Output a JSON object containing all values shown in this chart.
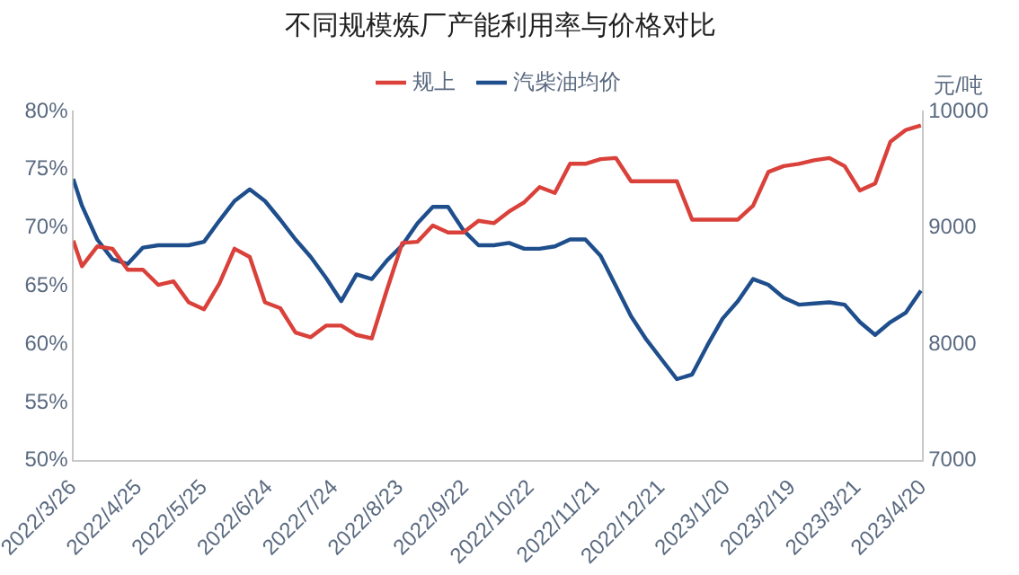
{
  "chart_data": {
    "type": "line",
    "title": "不同规模炼厂产能利用率与价格对比",
    "y2label": "元/吨",
    "x": [
      "2022-03-26",
      "2022-03-30",
      "2022-04-06",
      "2022-04-13",
      "2022-04-20",
      "2022-04-27",
      "2022-05-04",
      "2022-05-11",
      "2022-05-18",
      "2022-05-25",
      "2022-06-01",
      "2022-06-08",
      "2022-06-15",
      "2022-06-22",
      "2022-06-29",
      "2022-07-06",
      "2022-07-13",
      "2022-07-20",
      "2022-07-27",
      "2022-08-03",
      "2022-08-10",
      "2022-08-17",
      "2022-08-24",
      "2022-08-31",
      "2022-09-07",
      "2022-09-14",
      "2022-09-21",
      "2022-09-28",
      "2022-10-05",
      "2022-10-12",
      "2022-10-19",
      "2022-10-26",
      "2022-11-02",
      "2022-11-09",
      "2022-11-16",
      "2022-11-23",
      "2022-11-30",
      "2022-12-07",
      "2022-12-14",
      "2022-12-21",
      "2022-12-28",
      "2023-01-04",
      "2023-01-11",
      "2023-01-18",
      "2023-01-25",
      "2023-02-01",
      "2023-02-08",
      "2023-02-15",
      "2023-02-22",
      "2023-03-01",
      "2023-03-08",
      "2023-03-15",
      "2023-03-22",
      "2023-03-29",
      "2023-04-05",
      "2023-04-12",
      "2023-04-19"
    ],
    "series": [
      {
        "name": "规上",
        "color": "#d9413a",
        "axis": "y",
        "values": [
          68.9,
          66.7,
          68.4,
          68.2,
          66.4,
          66.4,
          65.1,
          65.4,
          63.6,
          63.0,
          65.2,
          68.2,
          67.5,
          63.6,
          63.1,
          61.0,
          60.6,
          61.6,
          61.6,
          60.8,
          60.5,
          64.7,
          68.7,
          68.8,
          70.2,
          69.6,
          69.6,
          70.6,
          70.4,
          71.4,
          72.2,
          73.5,
          73.0,
          75.5,
          75.5,
          75.9,
          76.0,
          74.0,
          74.0,
          74.0,
          74.0,
          70.7,
          70.7,
          70.7,
          70.7,
          71.9,
          74.8,
          75.3,
          75.5,
          75.8,
          76.0,
          75.3,
          73.2,
          73.8,
          77.4,
          78.4,
          78.8
        ]
      },
      {
        "name": "汽柴油均价",
        "color": "#1f4e8c",
        "axis": "y2",
        "values": [
          9420,
          9190,
          8900,
          8730,
          8690,
          8830,
          8850,
          8850,
          8850,
          8880,
          9060,
          9230,
          9330,
          9230,
          9070,
          8900,
          8750,
          8570,
          8370,
          8600,
          8560,
          8720,
          8850,
          9040,
          9180,
          9180,
          8980,
          8850,
          8850,
          8870,
          8820,
          8820,
          8840,
          8900,
          8900,
          8760,
          8500,
          8240,
          8040,
          7870,
          7700,
          7740,
          7990,
          8220,
          8370,
          8560,
          8510,
          8400,
          8340,
          8350,
          8360,
          8340,
          8190,
          8080,
          8190,
          8270,
          8460
        ]
      }
    ],
    "xlim": [
      "2022-03-26",
      "2023-04-20"
    ],
    "xticks": [
      {
        "value": "2022-03-26",
        "label": "2022/3/26"
      },
      {
        "value": "2022-04-25",
        "label": "2022/4/25"
      },
      {
        "value": "2022-05-25",
        "label": "2022/5/25"
      },
      {
        "value": "2022-06-24",
        "label": "2022/6/24"
      },
      {
        "value": "2022-07-24",
        "label": "2022/7/24"
      },
      {
        "value": "2022-08-23",
        "label": "2022/8/23"
      },
      {
        "value": "2022-09-22",
        "label": "2022/9/22"
      },
      {
        "value": "2022-10-22",
        "label": "2022/10/22"
      },
      {
        "value": "2022-11-21",
        "label": "2022/11/21"
      },
      {
        "value": "2022-12-21",
        "label": "2022/12/21"
      },
      {
        "value": "2023-01-20",
        "label": "2023/1/20"
      },
      {
        "value": "2023-02-19",
        "label": "2023/2/19"
      },
      {
        "value": "2023-03-21",
        "label": "2023/3/21"
      },
      {
        "value": "2023-04-20",
        "label": "2023/4/20"
      }
    ],
    "ylim": [
      50,
      80
    ],
    "yticks": [
      {
        "value": 50,
        "label": "50%"
      },
      {
        "value": 55,
        "label": "55%"
      },
      {
        "value": 60,
        "label": "60%"
      },
      {
        "value": 65,
        "label": "65%"
      },
      {
        "value": 70,
        "label": "70%"
      },
      {
        "value": 75,
        "label": "75%"
      },
      {
        "value": 80,
        "label": "80%"
      }
    ],
    "y2lim": [
      7000,
      10000
    ],
    "y2ticks": [
      7000,
      8000,
      9000,
      10000
    ],
    "legend": "top",
    "grid": false,
    "marker": "none",
    "line_style": "solid"
  }
}
